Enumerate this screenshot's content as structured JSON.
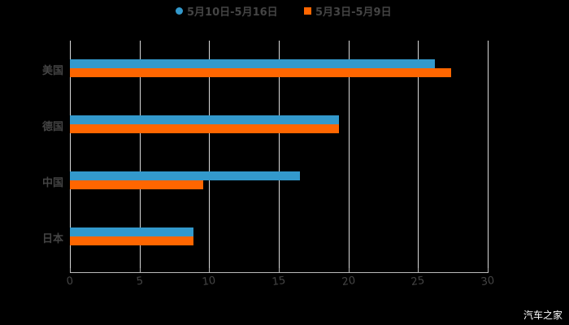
{
  "chart_data": {
    "type": "bar",
    "orientation": "horizontal",
    "categories": [
      "美国",
      "德国",
      "中国",
      "日本"
    ],
    "series": [
      {
        "name": "5月10日-5月16日",
        "color": "#3399cc",
        "values": [
          26.2,
          19.3,
          16.5,
          8.9
        ]
      },
      {
        "name": "5月3日-5月9日",
        "color": "#ff6600",
        "values": [
          27.4,
          19.3,
          9.6,
          8.9
        ]
      }
    ],
    "title": "",
    "xlabel": "",
    "ylabel": "",
    "xlim": [
      0,
      30
    ],
    "xticks": [
      "0",
      "5",
      "10",
      "15",
      "20",
      "25",
      "30"
    ],
    "grid": true,
    "legend_position": "top"
  },
  "legend": {
    "items": [
      {
        "label": "5月10日-5月16日",
        "color": "#3399cc",
        "shape": "circle"
      },
      {
        "label": "5月3日-5月9日",
        "color": "#ff6600",
        "shape": "square"
      }
    ]
  },
  "watermark": "汽车之家"
}
